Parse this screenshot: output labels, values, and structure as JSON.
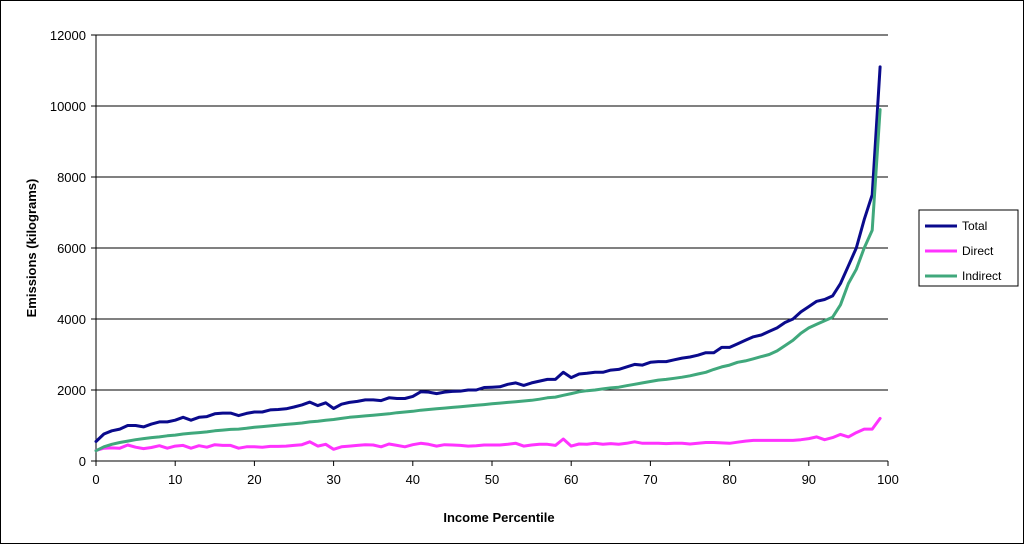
{
  "chart_data": {
    "type": "line",
    "xlabel": "Income Percentile",
    "ylabel": "Emissions (kilograms)",
    "xlim": [
      0,
      100
    ],
    "ylim": [
      0,
      12000
    ],
    "x_ticks": [
      0,
      10,
      20,
      30,
      40,
      50,
      60,
      70,
      80,
      90,
      100
    ],
    "y_ticks": [
      0,
      2000,
      4000,
      6000,
      8000,
      10000,
      12000
    ],
    "grid": "horizontal",
    "legend_position": "right",
    "x": [
      0,
      1,
      2,
      3,
      4,
      5,
      6,
      7,
      8,
      9,
      10,
      11,
      12,
      13,
      14,
      15,
      16,
      17,
      18,
      19,
      20,
      21,
      22,
      23,
      24,
      25,
      26,
      27,
      28,
      29,
      30,
      31,
      32,
      33,
      34,
      35,
      36,
      37,
      38,
      39,
      40,
      41,
      42,
      43,
      44,
      45,
      46,
      47,
      48,
      49,
      50,
      51,
      52,
      53,
      54,
      55,
      56,
      57,
      58,
      59,
      60,
      61,
      62,
      63,
      64,
      65,
      66,
      67,
      68,
      69,
      70,
      71,
      72,
      73,
      74,
      75,
      76,
      77,
      78,
      79,
      80,
      81,
      82,
      83,
      84,
      85,
      86,
      87,
      88,
      89,
      90,
      91,
      92,
      93,
      94,
      95,
      96,
      97,
      98,
      99
    ],
    "series": [
      {
        "name": "Total",
        "color": "#0a0a8c",
        "values": [
          550,
          760,
          850,
          900,
          1000,
          1000,
          960,
          1040,
          1100,
          1100,
          1150,
          1230,
          1150,
          1230,
          1250,
          1330,
          1350,
          1350,
          1280,
          1340,
          1380,
          1380,
          1440,
          1450,
          1470,
          1520,
          1580,
          1660,
          1560,
          1640,
          1480,
          1600,
          1650,
          1680,
          1720,
          1720,
          1700,
          1780,
          1760,
          1760,
          1820,
          1950,
          1940,
          1900,
          1940,
          1960,
          1970,
          2000,
          2000,
          2070,
          2080,
          2090,
          2160,
          2200,
          2130,
          2200,
          2250,
          2300,
          2300,
          2500,
          2350,
          2450,
          2470,
          2500,
          2500,
          2560,
          2580,
          2650,
          2720,
          2700,
          2780,
          2800,
          2800,
          2850,
          2900,
          2930,
          2980,
          3050,
          3050,
          3200,
          3200,
          3300,
          3400,
          3500,
          3550,
          3650,
          3750,
          3900,
          4000,
          4200,
          4350,
          4500,
          4550,
          4650,
          5000,
          5500,
          6000,
          6800,
          7500,
          11100
        ]
      },
      {
        "name": "Direct",
        "color": "#ff33ff",
        "values": [
          300,
          360,
          370,
          360,
          450,
          390,
          350,
          380,
          430,
          360,
          420,
          440,
          360,
          430,
          390,
          460,
          440,
          440,
          360,
          400,
          400,
          390,
          410,
          410,
          420,
          440,
          460,
          540,
          420,
          470,
          330,
          400,
          420,
          440,
          460,
          450,
          400,
          480,
          440,
          400,
          460,
          500,
          470,
          420,
          460,
          450,
          440,
          420,
          430,
          450,
          450,
          450,
          470,
          500,
          420,
          450,
          470,
          470,
          440,
          620,
          420,
          480,
          470,
          500,
          470,
          490,
          470,
          500,
          540,
          500,
          500,
          500,
          490,
          500,
          500,
          480,
          500,
          520,
          520,
          510,
          500,
          530,
          560,
          580,
          580,
          580,
          580,
          580,
          580,
          600,
          630,
          680,
          600,
          660,
          750,
          680,
          800,
          900,
          900,
          1200
        ]
      },
      {
        "name": "Indirect",
        "color": "#40a87c",
        "values": [
          290,
          400,
          470,
          520,
          560,
          600,
          630,
          660,
          680,
          710,
          730,
          760,
          780,
          800,
          820,
          850,
          870,
          890,
          900,
          920,
          950,
          970,
          990,
          1010,
          1030,
          1050,
          1070,
          1100,
          1120,
          1150,
          1170,
          1200,
          1230,
          1250,
          1270,
          1290,
          1310,
          1330,
          1360,
          1380,
          1400,
          1430,
          1450,
          1470,
          1490,
          1510,
          1530,
          1550,
          1570,
          1590,
          1610,
          1630,
          1650,
          1670,
          1690,
          1710,
          1740,
          1780,
          1800,
          1850,
          1900,
          1950,
          1980,
          2000,
          2030,
          2060,
          2080,
          2120,
          2160,
          2200,
          2240,
          2280,
          2300,
          2330,
          2360,
          2400,
          2450,
          2500,
          2580,
          2650,
          2700,
          2780,
          2820,
          2880,
          2940,
          3000,
          3100,
          3250,
          3400,
          3600,
          3750,
          3850,
          3950,
          4050,
          4400,
          5000,
          5400,
          6000,
          6500,
          9900
        ]
      }
    ]
  }
}
